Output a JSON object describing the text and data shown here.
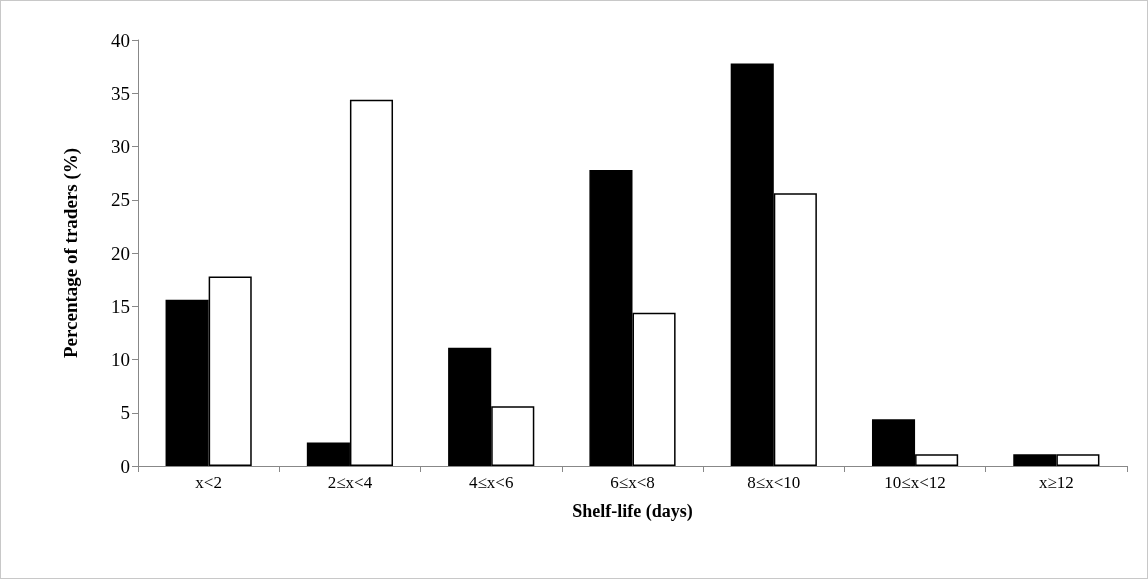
{
  "chart_data": {
    "type": "bar",
    "xlabel": "Shelf-life (days)",
    "ylabel": "Percentage of traders (%)",
    "categories": [
      "x<2",
      "2≤x<4",
      "4≤x<6",
      "6≤x<8",
      "8≤x<10",
      "10≤x<12",
      "x≥12"
    ],
    "series": [
      {
        "color": "#000000",
        "values": [
          15.6,
          2.2,
          11.1,
          27.8,
          37.8,
          4.4,
          1.1
        ]
      },
      {
        "color": "#ffffff",
        "values": [
          17.8,
          34.4,
          5.6,
          14.4,
          25.6,
          1.1,
          1.1
        ]
      }
    ],
    "ylim": [
      0,
      40
    ],
    "yticks": [
      0,
      5,
      10,
      15,
      20,
      25,
      30,
      35,
      40
    ],
    "grid": false
  }
}
